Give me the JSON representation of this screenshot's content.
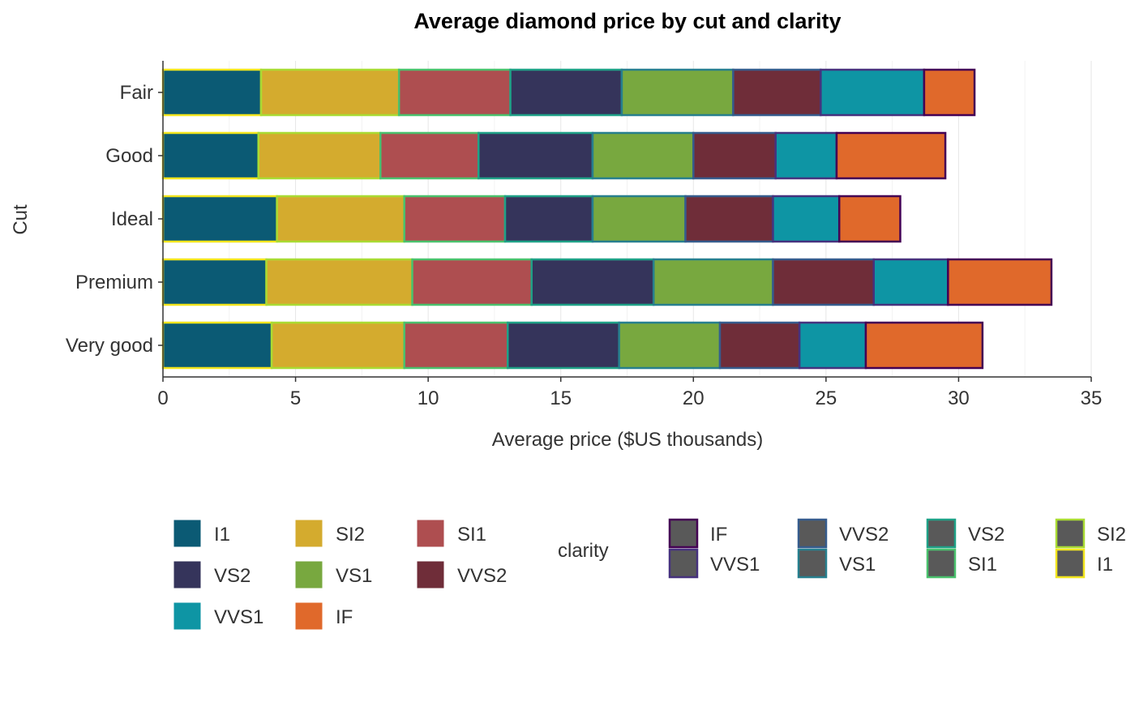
{
  "chart_data": {
    "type": "bar",
    "orientation": "horizontal",
    "stacked": true,
    "title": "Average diamond price by cut and clarity",
    "xlabel": "Average price ($US thousands)",
    "ylabel": "Cut",
    "xlim": [
      0,
      35
    ],
    "xticks": [
      "0",
      "5",
      "10",
      "15",
      "20",
      "25",
      "30",
      "35"
    ],
    "grid": "vertical",
    "categories": [
      "Fair",
      "Good",
      "Ideal",
      "Premium",
      "Very good"
    ],
    "series": [
      {
        "name": "I1",
        "fill": "#0b5a74",
        "outline": "#f2e51d",
        "values": [
          3.7,
          3.6,
          4.3,
          3.9,
          4.1
        ]
      },
      {
        "name": "SI2",
        "fill": "#d4ab2e",
        "outline": "#a9db33",
        "values": [
          5.2,
          4.6,
          4.8,
          5.5,
          5.0
        ]
      },
      {
        "name": "SI1",
        "fill": "#ae4e50",
        "outline": "#4ac16d",
        "values": [
          4.2,
          3.7,
          3.8,
          4.5,
          3.9
        ]
      },
      {
        "name": "VS2",
        "fill": "#35345b",
        "outline": "#1fa187",
        "values": [
          4.2,
          4.3,
          3.3,
          4.6,
          4.2
        ]
      },
      {
        "name": "VS1",
        "fill": "#78a83f",
        "outline": "#277f8e",
        "values": [
          4.2,
          3.8,
          3.5,
          4.5,
          3.8
        ]
      },
      {
        "name": "VVS2",
        "fill": "#6f2d39",
        "outline": "#365c8d",
        "values": [
          3.3,
          3.1,
          3.3,
          3.8,
          3.0
        ]
      },
      {
        "name": "VVS1",
        "fill": "#0e95a4",
        "outline": "#46327e",
        "values": [
          3.9,
          2.3,
          2.5,
          2.8,
          2.5
        ]
      },
      {
        "name": "IF",
        "fill": "#e0692b",
        "outline": "#440154",
        "values": [
          1.9,
          4.1,
          2.3,
          3.9,
          4.4
        ]
      }
    ],
    "legend_fill": {
      "items": [
        "I1",
        "SI2",
        "SI1",
        "VS2",
        "VS1",
        "VVS2",
        "VVS1",
        "IF"
      ],
      "position": "bottom"
    },
    "legend_outline": {
      "title": "clarity",
      "items": [
        "IF",
        "VVS1",
        "VVS2",
        "VS1",
        "VS2",
        "SI1",
        "SI2",
        "I1"
      ],
      "key_fill": "#595959",
      "position": "bottom"
    }
  }
}
